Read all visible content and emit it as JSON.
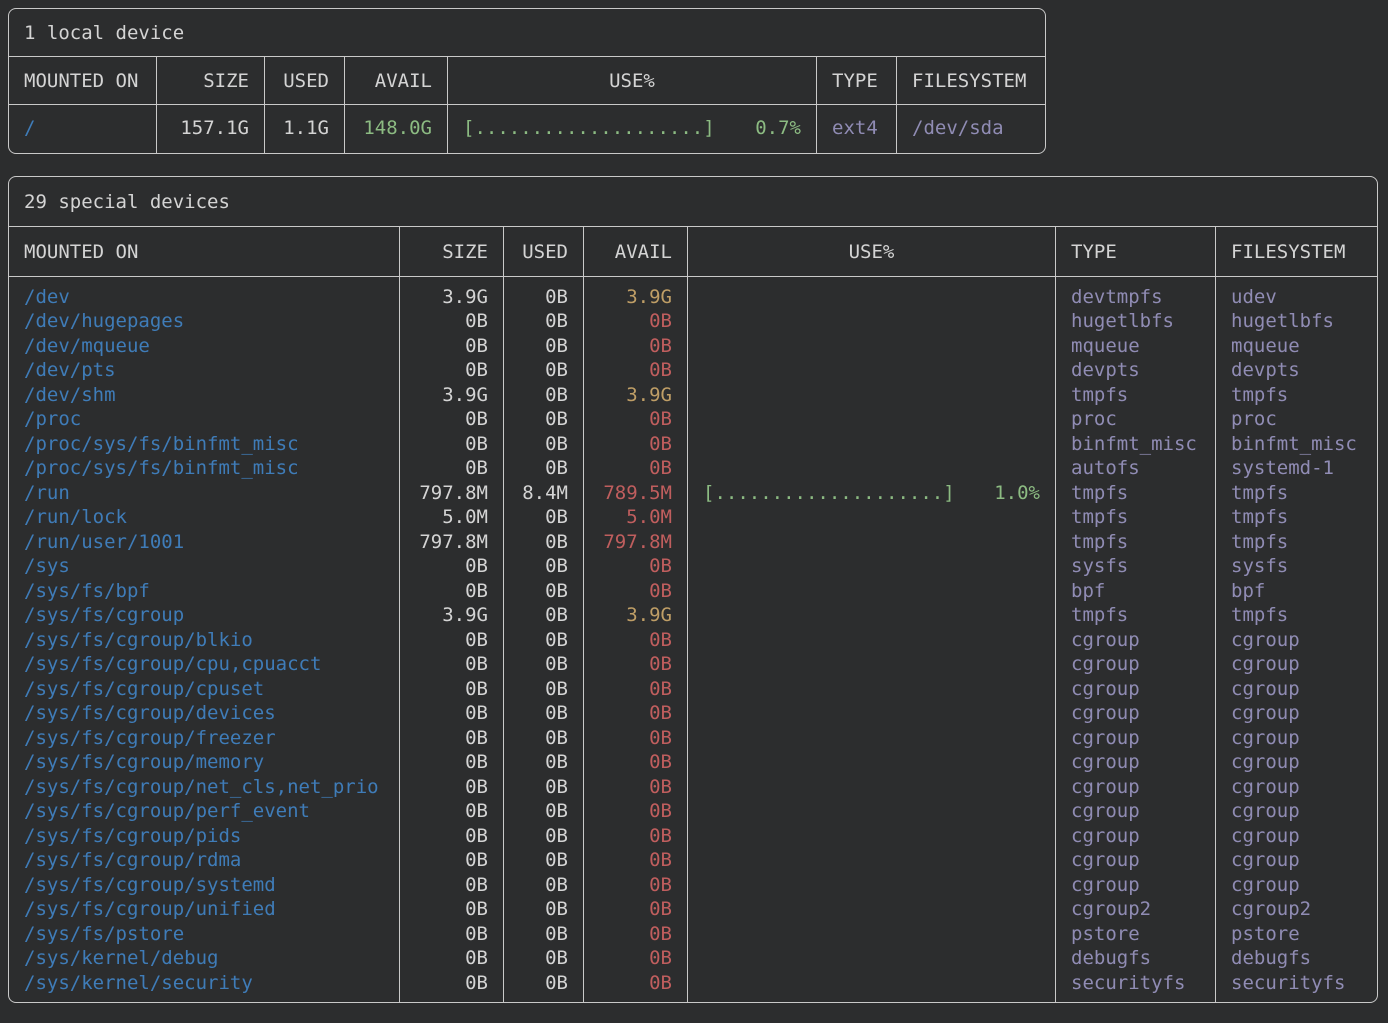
{
  "colors": {
    "background": "#2c2d2e",
    "border": "#c9c9c9",
    "text": "#d4d4d4",
    "mount_blue": "#3f7cb8",
    "type_lavender": "#908cb4",
    "avail_green": "#8cbb82",
    "avail_yellow": "#bf9e66",
    "avail_red": "#c05e5e"
  },
  "local_table": {
    "title": "1 local device",
    "columns": [
      "MOUNTED ON",
      "SIZE",
      "USED",
      "AVAIL",
      "USE%",
      "TYPE",
      "FILESYSTEM"
    ],
    "rows": [
      {
        "mount": "/",
        "size": "157.1G",
        "used": "1.1G",
        "avail": "148.0G",
        "avail_color": "green",
        "use_bar": "[....................]",
        "use_pct": "0.7%",
        "type": "ext4",
        "fs": "/dev/sda"
      }
    ]
  },
  "special_table": {
    "title": "29 special devices",
    "columns": [
      "MOUNTED ON",
      "SIZE",
      "USED",
      "AVAIL",
      "USE%",
      "TYPE",
      "FILESYSTEM"
    ],
    "rows": [
      {
        "mount": "/dev",
        "size": "3.9G",
        "used": "0B",
        "avail": "3.9G",
        "avail_color": "yellow",
        "use_bar": null,
        "use_pct": null,
        "type": "devtmpfs",
        "fs": "udev"
      },
      {
        "mount": "/dev/hugepages",
        "size": "0B",
        "used": "0B",
        "avail": "0B",
        "avail_color": "red",
        "use_bar": null,
        "use_pct": null,
        "type": "hugetlbfs",
        "fs": "hugetlbfs"
      },
      {
        "mount": "/dev/mqueue",
        "size": "0B",
        "used": "0B",
        "avail": "0B",
        "avail_color": "red",
        "use_bar": null,
        "use_pct": null,
        "type": "mqueue",
        "fs": "mqueue"
      },
      {
        "mount": "/dev/pts",
        "size": "0B",
        "used": "0B",
        "avail": "0B",
        "avail_color": "red",
        "use_bar": null,
        "use_pct": null,
        "type": "devpts",
        "fs": "devpts"
      },
      {
        "mount": "/dev/shm",
        "size": "3.9G",
        "used": "0B",
        "avail": "3.9G",
        "avail_color": "yellow",
        "use_bar": null,
        "use_pct": null,
        "type": "tmpfs",
        "fs": "tmpfs"
      },
      {
        "mount": "/proc",
        "size": "0B",
        "used": "0B",
        "avail": "0B",
        "avail_color": "red",
        "use_bar": null,
        "use_pct": null,
        "type": "proc",
        "fs": "proc"
      },
      {
        "mount": "/proc/sys/fs/binfmt_misc",
        "size": "0B",
        "used": "0B",
        "avail": "0B",
        "avail_color": "red",
        "use_bar": null,
        "use_pct": null,
        "type": "binfmt_misc",
        "fs": "binfmt_misc"
      },
      {
        "mount": "/proc/sys/fs/binfmt_misc",
        "size": "0B",
        "used": "0B",
        "avail": "0B",
        "avail_color": "red",
        "use_bar": null,
        "use_pct": null,
        "type": "autofs",
        "fs": "systemd-1"
      },
      {
        "mount": "/run",
        "size": "797.8M",
        "used": "8.4M",
        "avail": "789.5M",
        "avail_color": "red",
        "use_bar": "[....................]",
        "use_pct": "1.0%",
        "type": "tmpfs",
        "fs": "tmpfs"
      },
      {
        "mount": "/run/lock",
        "size": "5.0M",
        "used": "0B",
        "avail": "5.0M",
        "avail_color": "red",
        "use_bar": null,
        "use_pct": null,
        "type": "tmpfs",
        "fs": "tmpfs"
      },
      {
        "mount": "/run/user/1001",
        "size": "797.8M",
        "used": "0B",
        "avail": "797.8M",
        "avail_color": "red",
        "use_bar": null,
        "use_pct": null,
        "type": "tmpfs",
        "fs": "tmpfs"
      },
      {
        "mount": "/sys",
        "size": "0B",
        "used": "0B",
        "avail": "0B",
        "avail_color": "red",
        "use_bar": null,
        "use_pct": null,
        "type": "sysfs",
        "fs": "sysfs"
      },
      {
        "mount": "/sys/fs/bpf",
        "size": "0B",
        "used": "0B",
        "avail": "0B",
        "avail_color": "red",
        "use_bar": null,
        "use_pct": null,
        "type": "bpf",
        "fs": "bpf"
      },
      {
        "mount": "/sys/fs/cgroup",
        "size": "3.9G",
        "used": "0B",
        "avail": "3.9G",
        "avail_color": "yellow",
        "use_bar": null,
        "use_pct": null,
        "type": "tmpfs",
        "fs": "tmpfs"
      },
      {
        "mount": "/sys/fs/cgroup/blkio",
        "size": "0B",
        "used": "0B",
        "avail": "0B",
        "avail_color": "red",
        "use_bar": null,
        "use_pct": null,
        "type": "cgroup",
        "fs": "cgroup"
      },
      {
        "mount": "/sys/fs/cgroup/cpu,cpuacct",
        "size": "0B",
        "used": "0B",
        "avail": "0B",
        "avail_color": "red",
        "use_bar": null,
        "use_pct": null,
        "type": "cgroup",
        "fs": "cgroup"
      },
      {
        "mount": "/sys/fs/cgroup/cpuset",
        "size": "0B",
        "used": "0B",
        "avail": "0B",
        "avail_color": "red",
        "use_bar": null,
        "use_pct": null,
        "type": "cgroup",
        "fs": "cgroup"
      },
      {
        "mount": "/sys/fs/cgroup/devices",
        "size": "0B",
        "used": "0B",
        "avail": "0B",
        "avail_color": "red",
        "use_bar": null,
        "use_pct": null,
        "type": "cgroup",
        "fs": "cgroup"
      },
      {
        "mount": "/sys/fs/cgroup/freezer",
        "size": "0B",
        "used": "0B",
        "avail": "0B",
        "avail_color": "red",
        "use_bar": null,
        "use_pct": null,
        "type": "cgroup",
        "fs": "cgroup"
      },
      {
        "mount": "/sys/fs/cgroup/memory",
        "size": "0B",
        "used": "0B",
        "avail": "0B",
        "avail_color": "red",
        "use_bar": null,
        "use_pct": null,
        "type": "cgroup",
        "fs": "cgroup"
      },
      {
        "mount": "/sys/fs/cgroup/net_cls,net_prio",
        "size": "0B",
        "used": "0B",
        "avail": "0B",
        "avail_color": "red",
        "use_bar": null,
        "use_pct": null,
        "type": "cgroup",
        "fs": "cgroup"
      },
      {
        "mount": "/sys/fs/cgroup/perf_event",
        "size": "0B",
        "used": "0B",
        "avail": "0B",
        "avail_color": "red",
        "use_bar": null,
        "use_pct": null,
        "type": "cgroup",
        "fs": "cgroup"
      },
      {
        "mount": "/sys/fs/cgroup/pids",
        "size": "0B",
        "used": "0B",
        "avail": "0B",
        "avail_color": "red",
        "use_bar": null,
        "use_pct": null,
        "type": "cgroup",
        "fs": "cgroup"
      },
      {
        "mount": "/sys/fs/cgroup/rdma",
        "size": "0B",
        "used": "0B",
        "avail": "0B",
        "avail_color": "red",
        "use_bar": null,
        "use_pct": null,
        "type": "cgroup",
        "fs": "cgroup"
      },
      {
        "mount": "/sys/fs/cgroup/systemd",
        "size": "0B",
        "used": "0B",
        "avail": "0B",
        "avail_color": "red",
        "use_bar": null,
        "use_pct": null,
        "type": "cgroup",
        "fs": "cgroup"
      },
      {
        "mount": "/sys/fs/cgroup/unified",
        "size": "0B",
        "used": "0B",
        "avail": "0B",
        "avail_color": "red",
        "use_bar": null,
        "use_pct": null,
        "type": "cgroup2",
        "fs": "cgroup2"
      },
      {
        "mount": "/sys/fs/pstore",
        "size": "0B",
        "used": "0B",
        "avail": "0B",
        "avail_color": "red",
        "use_bar": null,
        "use_pct": null,
        "type": "pstore",
        "fs": "pstore"
      },
      {
        "mount": "/sys/kernel/debug",
        "size": "0B",
        "used": "0B",
        "avail": "0B",
        "avail_color": "red",
        "use_bar": null,
        "use_pct": null,
        "type": "debugfs",
        "fs": "debugfs"
      },
      {
        "mount": "/sys/kernel/security",
        "size": "0B",
        "used": "0B",
        "avail": "0B",
        "avail_color": "red",
        "use_bar": null,
        "use_pct": null,
        "type": "securityfs",
        "fs": "securityfs"
      }
    ]
  }
}
